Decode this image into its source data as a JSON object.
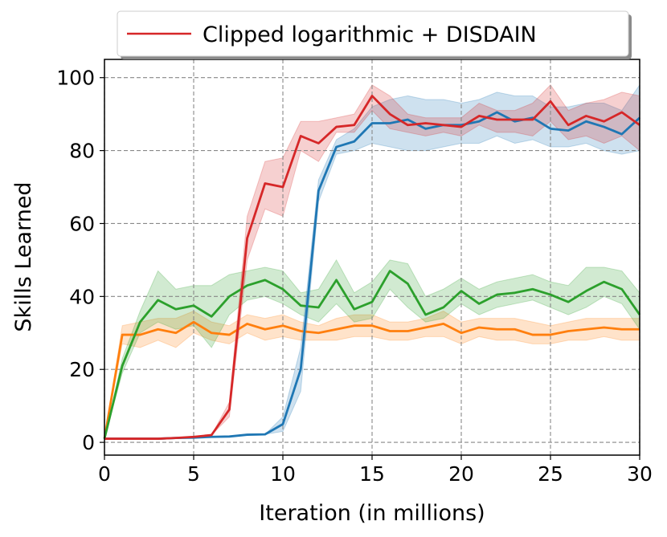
{
  "chart_data": {
    "type": "line",
    "xlabel": "Iteration (in millions)",
    "ylabel": "Skills Learned",
    "xlim": [
      0,
      30
    ],
    "ylim": [
      -3.5,
      105
    ],
    "xticks": [
      0,
      5,
      10,
      15,
      20,
      25,
      30
    ],
    "yticks": [
      0,
      20,
      40,
      60,
      80,
      100
    ],
    "grid": true,
    "legend": {
      "position": "top-right",
      "entries": [
        "Clipped logarithmic + DISDAIN"
      ]
    },
    "x": [
      0,
      1,
      2,
      3,
      4,
      5,
      6,
      7,
      8,
      9,
      10,
      11,
      12,
      13,
      14,
      15,
      16,
      17,
      18,
      19,
      20,
      21,
      22,
      23,
      24,
      25,
      26,
      27,
      28,
      29,
      30
    ],
    "series": [
      {
        "name": "Clipped logarithmic + DISDAIN",
        "color": "#d62728",
        "values": [
          1,
          1,
          1,
          1,
          1.2,
          1.5,
          2,
          9,
          56,
          71,
          70,
          84,
          82,
          86.5,
          87,
          95,
          90,
          87,
          87.5,
          87,
          86.5,
          89.5,
          88.5,
          88.5,
          88.5,
          93.5,
          87,
          89.5,
          88,
          90.5,
          87
        ],
        "lower": [
          1,
          1,
          1,
          1,
          1.2,
          1.5,
          2,
          7,
          50,
          64,
          62,
          80,
          77,
          85,
          85,
          91,
          86,
          85,
          84,
          85,
          84,
          87,
          85,
          85,
          84,
          88,
          83,
          84,
          82,
          84,
          80
        ],
        "upper": [
          1,
          1,
          1,
          1,
          1.2,
          1.5,
          2,
          11,
          62,
          77,
          78,
          88,
          88,
          89,
          90,
          98,
          95,
          90,
          89,
          89,
          89,
          93,
          91,
          91,
          93,
          98,
          91,
          93,
          94,
          96,
          95
        ]
      },
      {
        "color": "#1f77b4",
        "values": [
          1,
          1,
          1,
          1,
          1.2,
          1.3,
          1.5,
          1.6,
          2.1,
          2.2,
          5,
          20,
          69,
          81,
          82.5,
          87.5,
          87.5,
          88.5,
          86,
          87,
          87,
          88,
          90.5,
          88,
          89,
          86,
          85.5,
          88,
          86.5,
          84.5,
          89
        ],
        "lower": [
          1,
          1,
          1,
          1,
          1.2,
          1.3,
          1.5,
          1.6,
          2.1,
          2.2,
          3,
          14,
          66,
          79,
          80,
          82,
          81,
          80,
          80,
          81,
          82,
          82,
          84,
          82,
          83,
          81,
          81,
          82,
          80,
          79,
          80
        ],
        "upper": [
          1,
          1,
          1,
          1,
          1.2,
          1.3,
          1.5,
          1.6,
          2.1,
          2.2,
          7,
          26,
          72,
          83,
          86,
          92,
          94,
          95,
          94,
          94,
          93,
          94,
          96,
          95,
          95,
          92,
          92,
          93,
          93,
          91,
          98
        ]
      },
      {
        "color": "#2ca02c",
        "values": [
          1,
          21,
          33,
          39,
          36.5,
          37.5,
          34.5,
          40,
          43,
          44.5,
          42,
          37.5,
          37,
          44.5,
          36.5,
          38.5,
          47,
          43.5,
          35,
          37,
          41.5,
          38,
          40.5,
          41,
          42,
          40.5,
          38.5,
          41.5,
          44,
          42,
          35
        ],
        "lower": [
          1,
          19,
          30,
          33,
          31,
          32,
          26,
          35,
          39,
          40,
          38,
          35,
          33,
          38,
          33,
          34,
          42,
          37,
          33,
          34,
          38,
          35,
          37,
          38,
          39,
          37,
          35,
          37,
          40,
          38,
          31
        ],
        "upper": [
          1,
          23,
          36,
          47,
          42,
          43,
          43,
          46,
          47,
          48,
          47,
          41,
          42,
          50,
          41,
          44,
          50,
          49,
          40,
          42,
          45,
          42,
          44,
          45,
          46,
          44,
          43,
          48,
          48,
          47,
          41
        ]
      },
      {
        "color": "#ff7f0e",
        "values": [
          1,
          29.5,
          29.5,
          31,
          30,
          33,
          30,
          29.5,
          32.5,
          31,
          32,
          30.5,
          30,
          31,
          32,
          32,
          30.5,
          30.5,
          31.5,
          32.5,
          30,
          31.5,
          31,
          31,
          29.5,
          29.5,
          30.5,
          31,
          31.5,
          31,
          31
        ],
        "lower": [
          1,
          27,
          26,
          28,
          26,
          30,
          28,
          27,
          30,
          28,
          29,
          28,
          28,
          28,
          29,
          29,
          28,
          28,
          29,
          29,
          27,
          29,
          28,
          28,
          27,
          27,
          28,
          28,
          29,
          28,
          28
        ],
        "upper": [
          1,
          32,
          33,
          34,
          34,
          36,
          33,
          32,
          35,
          34,
          35,
          33,
          32,
          34,
          35,
          35,
          33,
          33,
          34,
          36,
          33,
          34,
          34,
          34,
          33,
          32,
          33,
          34,
          34,
          34,
          34
        ]
      }
    ]
  }
}
